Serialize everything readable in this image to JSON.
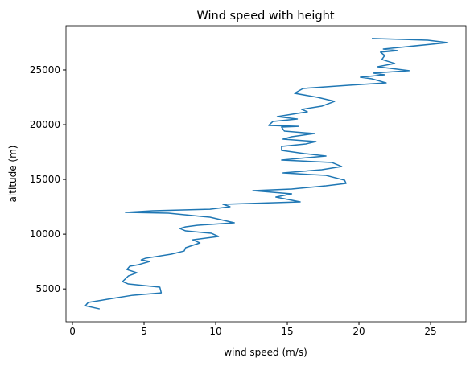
{
  "chart_data": {
    "type": "line",
    "title": "Wind speed with height",
    "x_label": "wind speed (m/s)",
    "y_label": "altitude (m)",
    "color": "#1f77b4",
    "x": [
      1.9,
      0.9,
      1.1,
      2.8,
      4.2,
      6.2,
      6.1,
      3.9,
      3.5,
      3.9,
      4.5,
      3.8,
      4.0,
      4.6,
      5.4,
      4.8,
      5.1,
      6.9,
      7.8,
      7.9,
      8.9,
      8.4,
      10.2,
      9.7,
      7.9,
      7.5,
      7.9,
      8.7,
      11.3,
      9.6,
      6.7,
      3.7,
      5.6,
      9.6,
      11.0,
      10.5,
      15.9,
      14.2,
      15.3,
      12.6,
      15.3,
      17.7,
      19.1,
      19.0,
      17.7,
      14.7,
      17.4,
      18.8,
      18.1,
      14.6,
      17.7,
      16.2,
      14.6,
      14.6,
      16.3,
      17.0,
      14.7,
      15.3,
      16.9,
      14.8,
      14.6,
      15.8,
      13.7,
      14.0,
      15.7,
      14.3,
      16.4,
      16.0,
      17.4,
      18.3,
      17.1,
      15.5,
      16.1,
      19.3,
      21.9,
      20.9,
      20.1,
      21.8,
      21.0,
      23.5,
      21.3,
      22.5,
      21.6,
      21.8,
      21.5,
      22.7,
      21.7,
      26.2,
      24.8,
      20.9
    ],
    "values": [
      3170,
      3460,
      3760,
      4130,
      4420,
      4640,
      5160,
      5450,
      5670,
      6180,
      6480,
      6770,
      7070,
      7210,
      7510,
      7650,
      7800,
      8170,
      8460,
      8760,
      9200,
      9490,
      9790,
      10080,
      10300,
      10520,
      10670,
      10810,
      11040,
      11550,
      11920,
      11990,
      12140,
      12280,
      12510,
      12730,
      12950,
      13390,
      13680,
      13980,
      14120,
      14420,
      14640,
      14930,
      15370,
      15590,
      15890,
      16180,
      16550,
      16770,
      17140,
      17360,
      17650,
      18020,
      18240,
      18460,
      18680,
      18900,
      19190,
      19410,
      19780,
      19850,
      19930,
      20300,
      20520,
      20740,
      21180,
      21400,
      21690,
      22130,
      22500,
      22870,
      23310,
      23600,
      23820,
      24190,
      24340,
      24560,
      24710,
      24930,
      25290,
      25590,
      25960,
      26320,
      26620,
      26760,
      26910,
      27500,
      27720,
      27870
    ],
    "xlim": [
      -0.45,
      27.47
    ],
    "ylim": [
      2000,
      29040
    ],
    "xticks": [
      0,
      5,
      10,
      15,
      20,
      25
    ],
    "yticks": [
      5000,
      10000,
      15000,
      20000,
      25000
    ]
  }
}
